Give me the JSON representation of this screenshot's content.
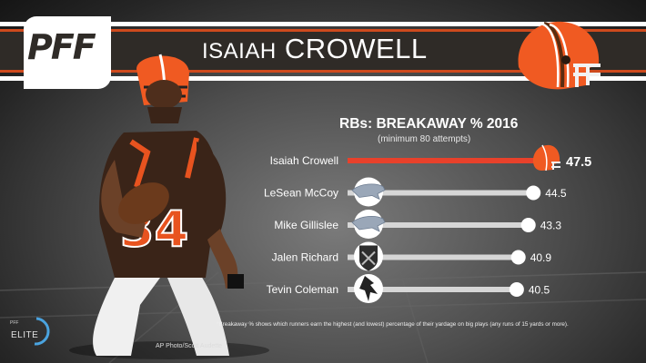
{
  "brand": {
    "logo": "PFF",
    "badge_prefix": "PFF",
    "badge": "ELITE"
  },
  "header": {
    "first_name": "ISAIAH",
    "last_name": "CROWELL"
  },
  "footer": {
    "footnote": "*Breakaway % shows which runners earn the highest (and lowest) percentage of their yardage on big plays (any runs of 15 yards or more).",
    "credit": "AP Photo/Scott Audette"
  },
  "chart_data": {
    "type": "bar",
    "orientation": "horizontal",
    "title": "RBs: BREAKAWAY % 2016",
    "subtitle": "(minimum 80 attempts)",
    "categories": [
      "Isaiah Crowell",
      "LeSean McCoy",
      "Mike Gillislee",
      "Jalen Richard",
      "Tevin Coleman"
    ],
    "values": [
      47.5,
      44.5,
      43.3,
      40.9,
      40.5
    ],
    "value_labels": [
      "47.5",
      "44.5",
      "43.3",
      "40.9",
      "40.5"
    ],
    "team_icons": [
      "browns-helmet-icon",
      "bills-logo-icon",
      "bills-logo-icon",
      "raiders-logo-icon",
      "falcons-logo-icon"
    ],
    "highlight_index": 0,
    "highlight_color": "#e8412b",
    "bar_color": "#d6d6d6",
    "xlim": [
      0,
      47.5
    ],
    "grid": false,
    "legend": "none"
  }
}
